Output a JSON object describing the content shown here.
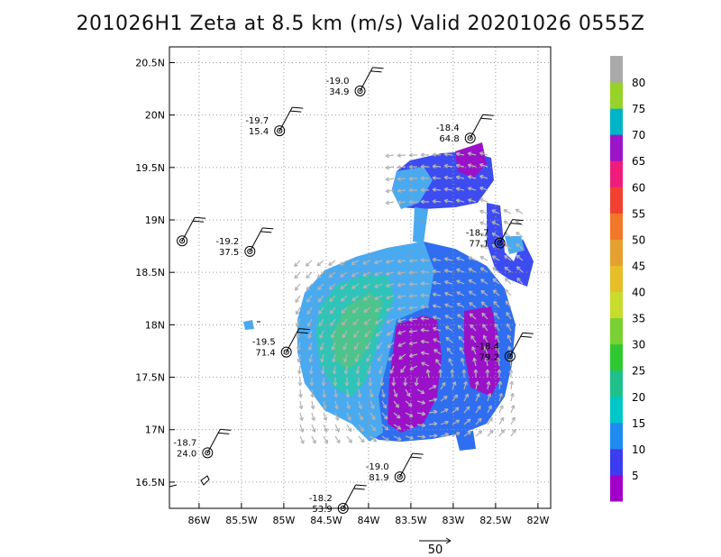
{
  "title": "201026H1 Zeta at 8.5 km (m/s) Valid 20201026 0555Z",
  "chart_data": {
    "type": "map",
    "x_ticks": [
      "86W",
      "85.5W",
      "85W",
      "84.5W",
      "84W",
      "83.5W",
      "83W",
      "82.5W",
      "82W"
    ],
    "y_ticks": [
      "20.5N",
      "20N",
      "19.5N",
      "19N",
      "18.5N",
      "18N",
      "17.5N",
      "17N",
      "16.5N"
    ],
    "x_range": [
      -86.35,
      -81.85
    ],
    "y_range": [
      16.25,
      20.65
    ],
    "colorbar": {
      "labels": [
        "5",
        "10",
        "15",
        "20",
        "25",
        "30",
        "35",
        "40",
        "45",
        "50",
        "55",
        "60",
        "65",
        "70",
        "75",
        "80"
      ],
      "colors": [
        "#a000c8",
        "#3c3cf0",
        "#1e8cf0",
        "#00c8c8",
        "#20c08a",
        "#30c830",
        "#7ad032",
        "#c8dc2c",
        "#e6be28",
        "#e6a030",
        "#f07828",
        "#f04030",
        "#f01c7c",
        "#9c14c8",
        "#00b4c8",
        "#96d228",
        "#aaaaaa"
      ]
    },
    "dropsondes": [
      {
        "lon": -86.2,
        "lat": 18.8,
        "top": "",
        "bottom": ""
      },
      {
        "lon": -85.4,
        "lat": 18.7,
        "top": "-19.2",
        "bottom": "37.5"
      },
      {
        "lon": -85.05,
        "lat": 19.85,
        "top": "-19.7",
        "bottom": "15.4"
      },
      {
        "lon": -84.1,
        "lat": 20.23,
        "top": "-19.0",
        "bottom": "34.9"
      },
      {
        "lon": -82.8,
        "lat": 19.78,
        "top": "-18.4",
        "bottom": "64.8"
      },
      {
        "lon": -82.45,
        "lat": 18.78,
        "top": "-18.7",
        "bottom": "77.1"
      },
      {
        "lon": -82.33,
        "lat": 17.7,
        "top": "-18.4",
        "bottom": "79.2"
      },
      {
        "lon": -84.97,
        "lat": 17.74,
        "top": "-19.5",
        "bottom": "71.4"
      },
      {
        "lon": -85.9,
        "lat": 16.78,
        "top": "-18.7",
        "bottom": "24.0"
      },
      {
        "lon": -83.63,
        "lat": 16.55,
        "top": "-19.0",
        "bottom": "81.9"
      },
      {
        "lon": -84.3,
        "lat": 16.25,
        "top": "-18.2",
        "bottom": "53.9"
      }
    ],
    "reference_vector": {
      "label": "50"
    }
  }
}
